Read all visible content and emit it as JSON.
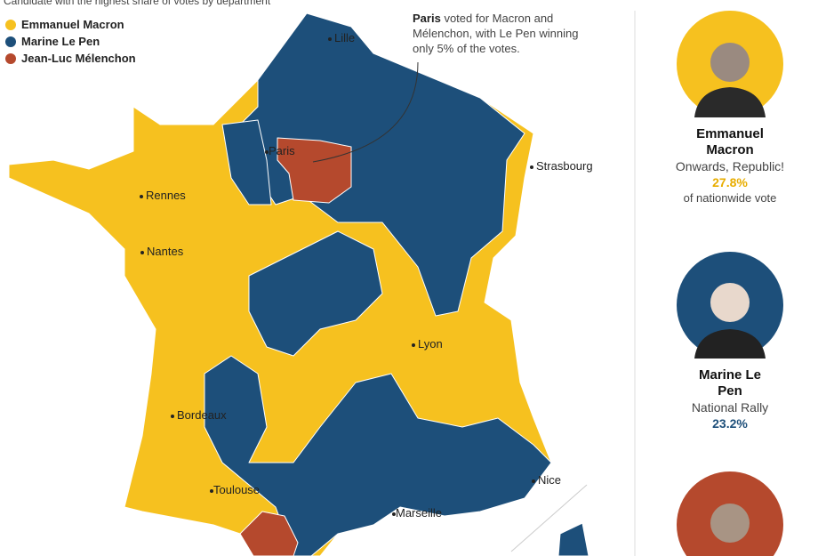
{
  "subtitle": "Candidate with the highest share of votes by department",
  "legend": [
    {
      "name": "Emmanuel Macron",
      "color": "#f6c11f"
    },
    {
      "name": "Marine Le Pen",
      "color": "#1d4f7a"
    },
    {
      "name": "Jean-Luc Mélenchon",
      "color": "#b5492d"
    }
  ],
  "annotation": {
    "bold": "Paris",
    "text": "voted for Macron and Mélenchon, with Le Pen winning only 5% of the votes."
  },
  "cities": [
    "Lille",
    "Paris",
    "Strasbourg",
    "Rennes",
    "Nantes",
    "Lyon",
    "Bordeaux",
    "Toulouse",
    "Nice",
    "Marseille"
  ],
  "candidates": [
    {
      "name": "Emmanuel Macron",
      "party": "Onwards, Republic!",
      "share": "27.8%",
      "note": "of nationwide vote",
      "color": "#e8ad00"
    },
    {
      "name": "Marine Le Pen",
      "party": "National Rally",
      "share": "23.2%",
      "color": "#1d4f7a"
    }
  ]
}
